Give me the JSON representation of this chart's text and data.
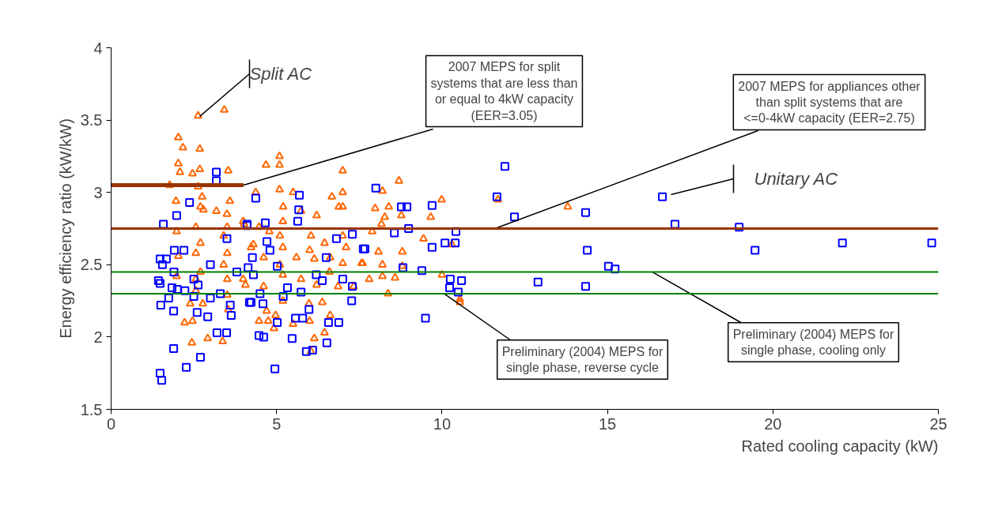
{
  "chart_data": {
    "type": "scatter",
    "xlabel": "Rated cooling capacity (kW)",
    "ylabel": "Energy efficiency ratio (kW/kW)",
    "xlim": [
      0,
      25
    ],
    "xticks": [
      0,
      5,
      10,
      15,
      20,
      25
    ],
    "ylim": [
      1.5,
      4
    ],
    "yticks": [
      1.5,
      2,
      2.5,
      3,
      3.5,
      4
    ],
    "grid": false,
    "legend": false,
    "series": [
      {
        "name": "Split AC",
        "color": "#ff6600",
        "marker": "triangle",
        "x": [
          8.7,
          9.99,
          8.2,
          7.98,
          8.39,
          8.27,
          8.77,
          9.66,
          8.17,
          7.89,
          9.44,
          10.3,
          8.08,
          8.8,
          7.6,
          8.2,
          8.8,
          10.0,
          7.8,
          8.2,
          8.58,
          8.37,
          10.54,
          10.54,
          11.69,
          13.8,
          2.63,
          3.42,
          2.03,
          2.17,
          2.68,
          2.03,
          2.08,
          2.68,
          3.54,
          2.46,
          1.77,
          2.63,
          1.96,
          3.59,
          2.75,
          2.79,
          3.18,
          1.98,
          4.02,
          2.03,
          2.56,
          2.56,
          2.56,
          2.56,
          3.51,
          3.51,
          3.51,
          3.51,
          2.39,
          2.77,
          2.22,
          2.46,
          2.44,
          2.92,
          3.37,
          3.54,
          1.98,
          3.99,
          4.23,
          5.09,
          4.68,
          5.09,
          7.0,
          4.37,
          5.09,
          5.5,
          6.67,
          7.0,
          5.74,
          6.21,
          6.88,
          5.19,
          5.19,
          5.19,
          5.19,
          3.99,
          4.47,
          4.78,
          4.3,
          4.61,
          6.04,
          6.45,
          7.1,
          6.14,
          6.62,
          7.0,
          7.57,
          5.74,
          6.21,
          6.86,
          7.33,
          4.06,
          4.61,
          4.47,
          4.75,
          4.92,
          5.5,
          6.0,
          6.62,
          6.45,
          6.04,
          6.14,
          4.7,
          4.97,
          5.98,
          6.38,
          2.7,
          2.7,
          2.7,
          3.4,
          3.4,
          3.5,
          5.1,
          5.1,
          5.2,
          6.6,
          7.0,
          7.0,
          6.0,
          5.6
        ],
        "values": [
          3.08,
          2.95,
          3.01,
          2.89,
          2.9,
          2.83,
          2.84,
          2.83,
          2.78,
          2.73,
          2.68,
          2.64,
          2.59,
          2.59,
          2.51,
          2.5,
          2.49,
          2.43,
          2.4,
          2.42,
          2.41,
          2.3,
          2.26,
          2.24,
          2.95,
          2.9,
          3.53,
          3.57,
          3.38,
          3.31,
          3.3,
          3.2,
          3.14,
          3.16,
          3.15,
          3.13,
          3.05,
          3.04,
          2.94,
          2.94,
          2.97,
          2.88,
          2.87,
          2.73,
          2.78,
          2.56,
          2.76,
          2.58,
          2.4,
          2.32,
          2.76,
          2.58,
          2.4,
          2.29,
          2.23,
          2.23,
          2.1,
          2.11,
          1.96,
          1.99,
          1.97,
          2.19,
          2.42,
          2.4,
          2.62,
          3.25,
          3.19,
          3.19,
          3.15,
          3.0,
          3.02,
          3.0,
          2.97,
          3.0,
          2.87,
          2.84,
          2.9,
          2.8,
          2.62,
          2.43,
          2.25,
          2.8,
          2.76,
          2.73,
          2.64,
          2.55,
          2.7,
          2.65,
          2.62,
          2.54,
          2.55,
          2.51,
          2.51,
          2.4,
          2.36,
          2.35,
          2.35,
          2.36,
          2.35,
          2.11,
          2.11,
          2.06,
          2.09,
          2.11,
          2.15,
          2.03,
          1.9,
          1.99,
          2.18,
          2.15,
          2.23,
          2.24,
          2.45,
          2.65,
          2.9,
          2.5,
          2.7,
          2.85,
          2.5,
          2.7,
          2.9,
          2.45,
          2.7,
          2.9,
          2.6,
          2.55
        ]
      },
      {
        "name": "Unitary AC",
        "color": "#0000ff",
        "marker": "square",
        "x": [
          11.9,
          11.66,
          12.19,
          14.34,
          16.66,
          17.04,
          18.98,
          14.39,
          19.46,
          22.1,
          24.8,
          15.03,
          15.23,
          12.9,
          14.34,
          8.0,
          8.77,
          8.94,
          9.7,
          8.99,
          8.56,
          10.42,
          10.09,
          10.4,
          9.7,
          7.67,
          8.82,
          9.39,
          10.25,
          10.59,
          10.23,
          10.49,
          9.5,
          1.48,
          1.53,
          1.89,
          2.27,
          2.7,
          3.49,
          3.2,
          3.63,
          2.92,
          2.6,
          1.89,
          1.5,
          1.74,
          3.18,
          3.18,
          1.58,
          1.48,
          1.67,
          1.55,
          1.43,
          1.48,
          1.91,
          1.98,
          2.37,
          1.84,
          2.63,
          2.23,
          4.18,
          4.14,
          4.11,
          5.69,
          4.37,
          5.64,
          5.67,
          4.11,
          4.66,
          7.29,
          6.81,
          7.62,
          4.71,
          4.27,
          5.02,
          4.3,
          5.33,
          5.74,
          6.38,
          7.29,
          7.27,
          4.23,
          4.59,
          5.02,
          5.57,
          5.79,
          6.88,
          4.47,
          4.61,
          5.47,
          6.52,
          5.9,
          6.09,
          4.95,
          6.57,
          5.98,
          1.9,
          2.2,
          2.5,
          3.0,
          3.3,
          3.5,
          3.8,
          2.0,
          2.5,
          3.0,
          3.6,
          4.5,
          4.8,
          5.2,
          6.2,
          6.5,
          7.0
        ],
        "values": [
          3.18,
          2.97,
          2.83,
          2.86,
          2.97,
          2.78,
          2.76,
          2.6,
          2.6,
          2.65,
          2.65,
          2.49,
          2.47,
          2.38,
          2.35,
          3.03,
          2.9,
          2.9,
          2.91,
          2.75,
          2.72,
          2.73,
          2.65,
          2.65,
          2.62,
          2.61,
          2.48,
          2.46,
          2.4,
          2.39,
          2.34,
          2.31,
          2.13,
          1.75,
          1.7,
          1.92,
          1.79,
          1.86,
          2.03,
          2.03,
          2.15,
          2.14,
          2.17,
          2.18,
          2.22,
          2.27,
          3.14,
          3.08,
          2.78,
          2.54,
          2.54,
          2.5,
          2.39,
          2.37,
          2.6,
          2.84,
          2.93,
          2.34,
          2.36,
          2.32,
          2.24,
          2.48,
          2.78,
          2.98,
          2.96,
          2.8,
          2.88,
          2.77,
          2.79,
          2.71,
          2.68,
          2.61,
          2.66,
          2.55,
          2.49,
          2.43,
          2.34,
          2.31,
          2.39,
          2.35,
          2.25,
          2.24,
          2.23,
          2.1,
          2.13,
          2.13,
          2.1,
          2.01,
          2.0,
          1.99,
          1.96,
          1.9,
          1.91,
          1.78,
          2.1,
          2.19,
          2.45,
          2.6,
          2.4,
          2.5,
          2.3,
          2.68,
          2.45,
          2.33,
          2.28,
          2.27,
          2.22,
          2.3,
          2.6,
          2.28,
          2.43,
          2.55,
          2.4
        ]
      },
      {
        "type": "line",
        "color": "#993300",
        "x": [
          0,
          4
        ],
        "values": [
          3.05,
          3.05
        ]
      }
    ],
    "ref_lines": [
      {
        "axis": "y",
        "value": 2.75,
        "color": "#993300"
      },
      {
        "axis": "y",
        "value": 2.45,
        "color": "#008000"
      },
      {
        "axis": "y",
        "value": 2.3,
        "color": "#008000"
      }
    ],
    "annotations": [
      {
        "text": "2007 MEPS for split systems that are less than or equal to 4kW capacity (EER=3.05)",
        "x": 4,
        "y": 3.05
      },
      {
        "text": "2007 MEPS for appliances other than split systems that are <=0-4kW capacity (EER=2.75)",
        "x": 11.6,
        "y": 2.75
      },
      {
        "text": "Preliminary (2004) MEPS for single phase, reverse cycle",
        "x": 10.06,
        "y": 2.3
      },
      {
        "text": "Preliminary (2004) MEPS for single phase, cooling only",
        "x": 16.35,
        "y": 2.45
      }
    ]
  }
}
